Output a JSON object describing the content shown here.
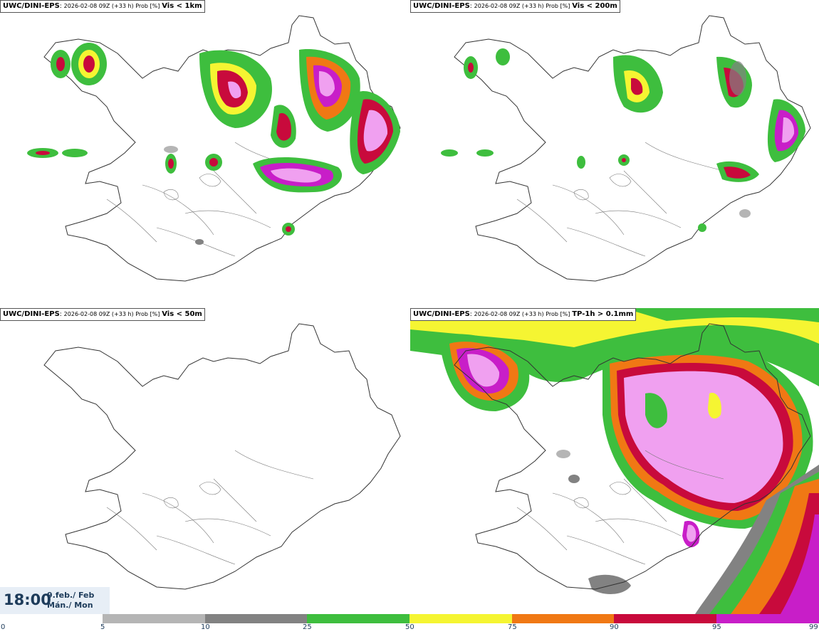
{
  "panels": [
    {
      "model": "UWC/DINI-EPS",
      "run": "2026-02-08 09Z (+33 h) Prob [%]",
      "variable": "Vis < 1km"
    },
    {
      "model": "UWC/DINI-EPS",
      "run": "2026-02-08 09Z (+33 h) Prob [%]",
      "variable": "Vis < 200m"
    },
    {
      "model": "UWC/DINI-EPS",
      "run": "2026-02-08 09Z (+33 h) Prob [%]",
      "variable": "Vis < 50m"
    },
    {
      "model": "UWC/DINI-EPS",
      "run": "2026-02-08 09Z (+33 h) Prob [%]",
      "variable": "TP-1h > 0.1mm"
    }
  ],
  "valid_time": {
    "time": "18:00",
    "date_line1": "9.feb./ Feb",
    "date_line2": "Mán./ Mon"
  },
  "legend": {
    "ticks": [
      "0",
      "5",
      "10",
      "25",
      "50",
      "75",
      "90",
      "95",
      "99"
    ],
    "colors": [
      "#ffffff",
      "#b5b5b5",
      "#828282",
      "#3ebe3e",
      "#f5f532",
      "#f07814",
      "#c80a3c",
      "#c81ec8",
      "#f0a0f0"
    ]
  }
}
